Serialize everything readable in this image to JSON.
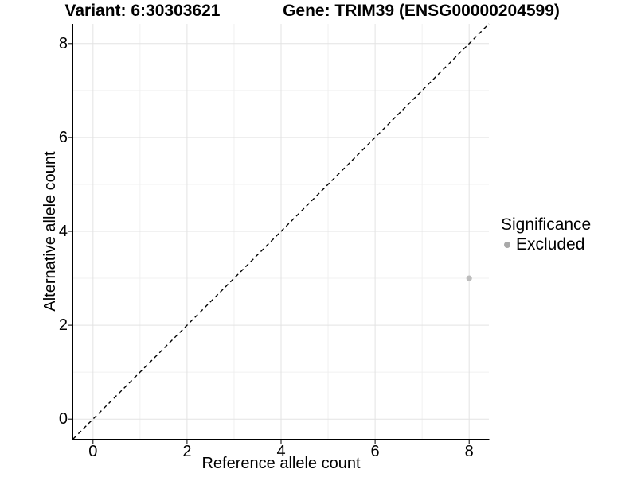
{
  "chart_data": {
    "type": "scatter",
    "title_left": "Variant: 6:30303621",
    "title_right": "Gene: TRIM39 (ENSG00000204599)",
    "xlabel": "Reference allele count",
    "ylabel": "Alternative allele count",
    "xlim": [
      -0.42,
      8.42
    ],
    "ylim": [
      -0.42,
      8.42
    ],
    "xticks": [
      0,
      2,
      4,
      6,
      8
    ],
    "yticks": [
      0,
      2,
      4,
      6,
      8
    ],
    "x_minor_ticks": [
      1,
      3,
      5,
      7
    ],
    "y_minor_ticks": [
      1,
      3,
      5,
      7
    ],
    "grid": true,
    "legend_title": "Significance",
    "legend_position": "right",
    "identity_line": {
      "style": "dashed",
      "color": "#000000"
    },
    "series": [
      {
        "name": "Excluded",
        "color": "#bdbdbd",
        "points": [
          {
            "x": 8,
            "y": 3
          }
        ]
      }
    ]
  },
  "legend": {
    "dot_color": "#a9a9a9"
  },
  "colors": {
    "background": "#ffffff",
    "axis_line": "#000000",
    "grid_major": "#e3e3e3",
    "grid_minor": "#f0f0f0",
    "tick_mark": "#000000",
    "text": "#000000"
  }
}
